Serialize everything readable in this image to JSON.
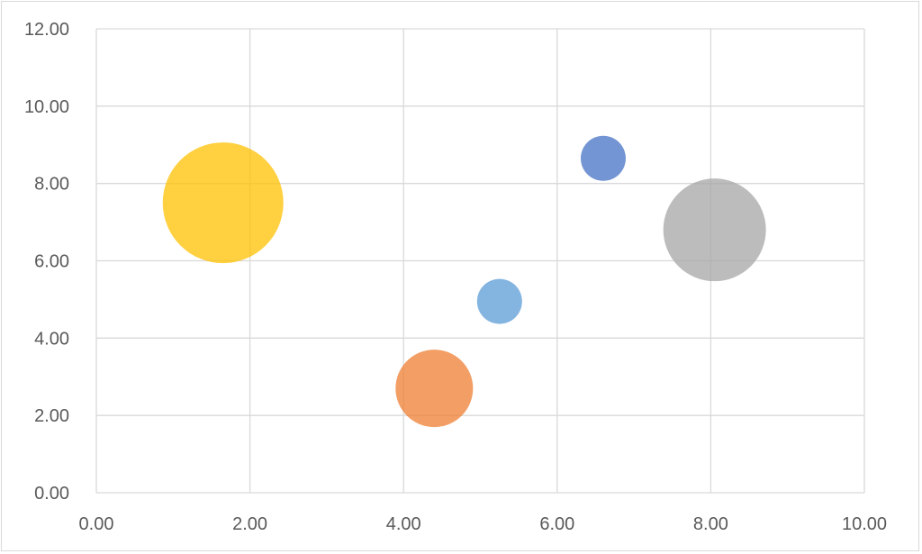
{
  "chart_data": {
    "type": "scatter",
    "subtype": "bubble",
    "title": "",
    "xlabel": "",
    "ylabel": "",
    "xlim": [
      0,
      10
    ],
    "ylim": [
      0,
      12
    ],
    "x_ticks": [
      "0.00",
      "2.00",
      "4.00",
      "6.00",
      "8.00",
      "10.00"
    ],
    "y_ticks": [
      "0.00",
      "2.00",
      "4.00",
      "6.00",
      "8.00",
      "10.00",
      "12.00"
    ],
    "grid": true,
    "legend": null,
    "points": [
      {
        "x": 1.65,
        "y": 7.5,
        "size_radius_px": 67,
        "color": "#FFC000"
      },
      {
        "x": 4.4,
        "y": 2.7,
        "size_radius_px": 43,
        "color": "#ED7D31"
      },
      {
        "x": 5.25,
        "y": 4.95,
        "size_radius_px": 25,
        "color": "#5B9BD5"
      },
      {
        "x": 6.6,
        "y": 8.65,
        "size_radius_px": 25,
        "color": "#4472C4"
      },
      {
        "x": 8.05,
        "y": 6.8,
        "size_radius_px": 57,
        "color": "#A5A5A5"
      }
    ]
  },
  "colors": {
    "grid": "#d9d9d9",
    "tick_label": "#595959",
    "frame": "#d9d9d9"
  }
}
